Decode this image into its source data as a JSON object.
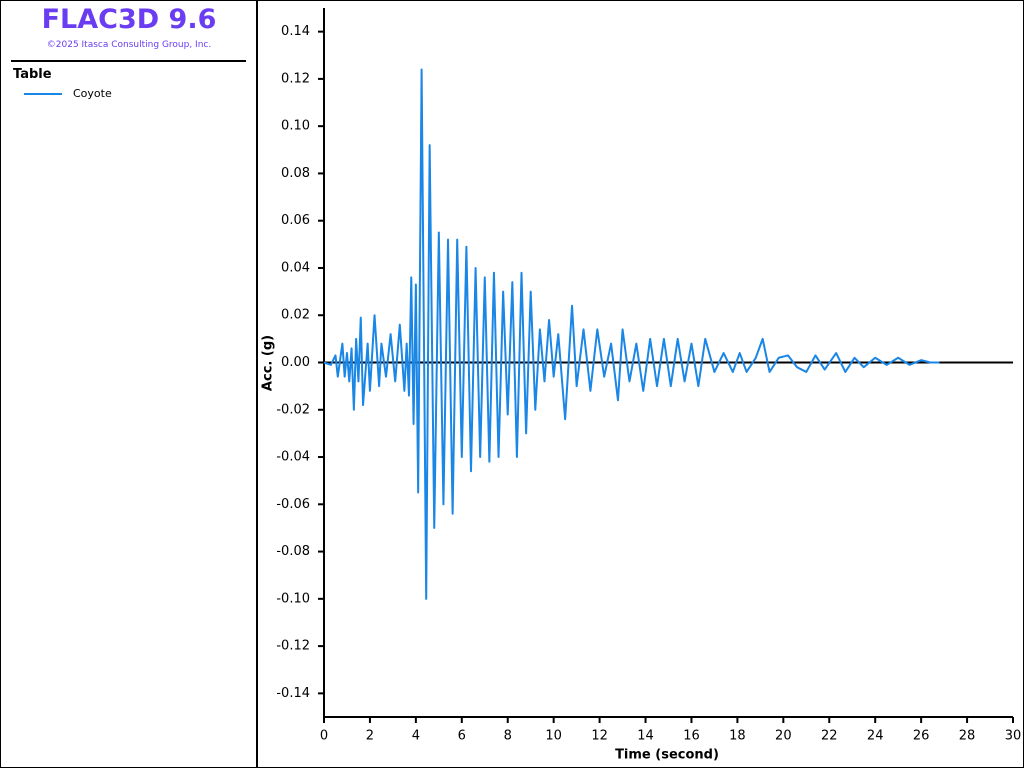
{
  "app": {
    "title": "FLAC3D 9.6",
    "copyright": "©2025 Itasca Consulting Group, Inc."
  },
  "chart_data": {
    "type": "line",
    "legend_title": "Table",
    "x_label": "Time (second)",
    "y_label": "Acc. (g)",
    "x": [
      0,
      0.3,
      0.5,
      0.6,
      0.8,
      0.9,
      1.0,
      1.1,
      1.2,
      1.3,
      1.4,
      1.5,
      1.6,
      1.7,
      1.9,
      2.0,
      2.2,
      2.4,
      2.5,
      2.7,
      2.9,
      3.1,
      3.3,
      3.5,
      3.6,
      3.7,
      3.8,
      3.9,
      4.0,
      4.1,
      4.25,
      4.45,
      4.6,
      4.8,
      5.0,
      5.2,
      5.4,
      5.6,
      5.8,
      6.0,
      6.2,
      6.4,
      6.6,
      6.8,
      7.0,
      7.2,
      7.4,
      7.6,
      7.8,
      8.0,
      8.2,
      8.4,
      8.6,
      8.8,
      9.0,
      9.2,
      9.4,
      9.6,
      9.8,
      10.0,
      10.2,
      10.5,
      10.8,
      11.0,
      11.3,
      11.6,
      11.9,
      12.2,
      12.5,
      12.8,
      13.0,
      13.3,
      13.6,
      13.9,
      14.2,
      14.5,
      14.8,
      15.1,
      15.4,
      15.7,
      16.0,
      16.3,
      16.6,
      17.0,
      17.4,
      17.8,
      18.1,
      18.4,
      18.8,
      19.1,
      19.4,
      19.8,
      20.2,
      20.6,
      21.0,
      21.4,
      21.8,
      22.3,
      22.7,
      23.1,
      23.5,
      24.0,
      24.5,
      25.0,
      25.5,
      26.0,
      26.4,
      26.8
    ],
    "series": [
      {
        "name": "Coyote",
        "color": "#1a86e6",
        "values": [
          0,
          -0.001,
          0.003,
          -0.006,
          0.008,
          -0.006,
          0.004,
          -0.008,
          0.006,
          -0.02,
          0.01,
          -0.008,
          0.019,
          -0.018,
          0.008,
          -0.012,
          0.02,
          -0.01,
          0.008,
          -0.006,
          0.012,
          -0.008,
          0.016,
          -0.012,
          0.008,
          -0.014,
          0.036,
          -0.026,
          0.033,
          -0.055,
          0.124,
          -0.1,
          0.092,
          -0.07,
          0.055,
          -0.06,
          0.052,
          -0.064,
          0.052,
          -0.04,
          0.049,
          -0.046,
          0.04,
          -0.04,
          0.036,
          -0.042,
          0.038,
          -0.04,
          0.03,
          -0.022,
          0.034,
          -0.04,
          0.038,
          -0.03,
          0.03,
          -0.02,
          0.014,
          -0.008,
          0.018,
          -0.006,
          0.012,
          -0.024,
          0.024,
          -0.01,
          0.014,
          -0.012,
          0.014,
          -0.006,
          0.008,
          -0.016,
          0.014,
          -0.008,
          0.008,
          -0.012,
          0.01,
          -0.01,
          0.01,
          -0.01,
          0.01,
          -0.008,
          0.008,
          -0.01,
          0.01,
          -0.004,
          0.004,
          -0.004,
          0.004,
          -0.004,
          0.002,
          0.01,
          -0.004,
          0.002,
          0.003,
          -0.002,
          -0.004,
          0.003,
          -0.003,
          0.004,
          -0.004,
          0.002,
          -0.002,
          0.002,
          -0.001,
          0.002,
          -0.001,
          0.001,
          0,
          0
        ]
      }
    ],
    "xlim": [
      0,
      30
    ],
    "xticks": [
      0,
      2,
      4,
      6,
      8,
      10,
      12,
      14,
      16,
      18,
      20,
      22,
      24,
      26,
      28,
      30
    ],
    "ylim": [
      -0.15,
      0.15
    ],
    "yticks": [
      0.14,
      0.12,
      {
        "value": 0.1,
        "label": "0.10"
      },
      0.08,
      0.06,
      0.04,
      0.02,
      {
        "value": 0,
        "label": "0.00"
      },
      -0.02,
      -0.04,
      -0.06,
      -0.08,
      {
        "value": -0.1,
        "label": "-0.10"
      },
      -0.12,
      -0.14
    ]
  }
}
